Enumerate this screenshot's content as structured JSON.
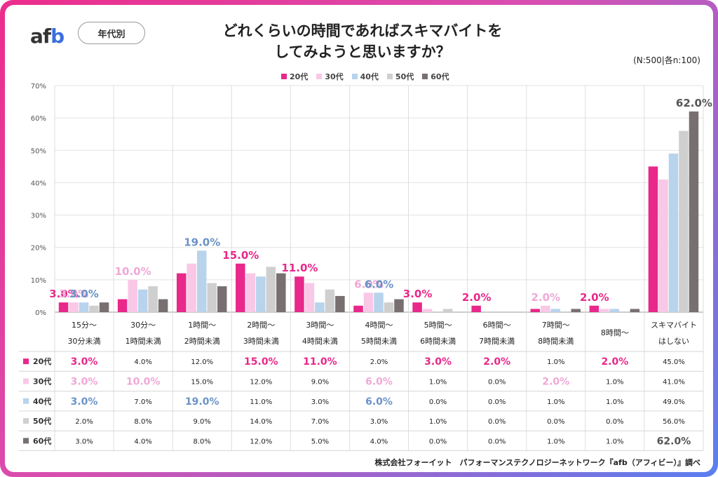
{
  "brand": {
    "logo_a": "af",
    "logo_b": "b"
  },
  "segment_label": "年代別",
  "sample_note": "(N:500|各n:100)",
  "source_note": "株式会社フォーイット　パフォーマンステクノロジーネットワーク『afb（アフィビー）』調べ",
  "chart_data": {
    "type": "bar",
    "title_lines": [
      "どれくらいの時間であればスキマバイトを",
      "してみようと思いますか？"
    ],
    "categories": [
      [
        "15分〜",
        "30分未満"
      ],
      [
        "30分〜",
        "1時間未満"
      ],
      [
        "1時間〜",
        "2時間未満"
      ],
      [
        "2時間〜",
        "3時間未満"
      ],
      [
        "3時間〜",
        "4時間未満"
      ],
      [
        "4時間〜",
        "5時間未満"
      ],
      [
        "5時間〜",
        "6時間未満"
      ],
      [
        "6時間〜",
        "7時間未満"
      ],
      [
        "7時間〜",
        "8時間未満"
      ],
      [
        "8時間〜"
      ],
      [
        "スキマバイト",
        "はしない"
      ]
    ],
    "series": [
      {
        "name": "20代",
        "color": "#e8288a",
        "values": [
          3,
          4,
          12,
          15,
          11,
          2,
          3,
          2,
          1,
          2,
          45
        ]
      },
      {
        "name": "30代",
        "color": "#f9c8e6",
        "values": [
          3,
          10,
          15,
          12,
          9,
          6,
          1,
          0,
          2,
          1,
          41
        ]
      },
      {
        "name": "40代",
        "color": "#b8d3ec",
        "values": [
          3,
          7,
          19,
          11,
          3,
          6,
          0,
          0,
          1,
          1,
          49
        ]
      },
      {
        "name": "50代",
        "color": "#cfcfcf",
        "values": [
          2,
          8,
          9,
          14,
          7,
          3,
          1,
          0,
          0,
          0,
          56
        ]
      },
      {
        "name": "60代",
        "color": "#787070",
        "values": [
          3,
          4,
          8,
          12,
          5,
          4,
          0,
          0,
          1,
          1,
          62
        ]
      }
    ],
    "yticks": [
      "0%",
      "10%",
      "20%",
      "30%",
      "40%",
      "50%",
      "60%",
      "70%"
    ],
    "ylim": [
      0,
      70
    ],
    "highlights": [
      {
        "cat": 0,
        "series": 0,
        "text": "3.0%",
        "color": "#e8288a"
      },
      {
        "cat": 0,
        "series": 1,
        "text": "3.0%",
        "color": "#f0a8d6"
      },
      {
        "cat": 0,
        "series": 2,
        "text": "3.0%",
        "color": "#6a93c7"
      },
      {
        "cat": 1,
        "series": 1,
        "text": "10.0%",
        "color": "#f0a8d6"
      },
      {
        "cat": 2,
        "series": 2,
        "text": "19.0%",
        "color": "#6a93c7"
      },
      {
        "cat": 3,
        "series": 0,
        "text": "15.0%",
        "color": "#e8288a"
      },
      {
        "cat": 4,
        "series": 0,
        "text": "11.0%",
        "color": "#e8288a"
      },
      {
        "cat": 5,
        "series": 1,
        "text": "6.0%",
        "color": "#f0a8d6"
      },
      {
        "cat": 5,
        "series": 2,
        "text": "6.0%",
        "color": "#6a93c7"
      },
      {
        "cat": 6,
        "series": 0,
        "text": "3.0%",
        "color": "#e8288a"
      },
      {
        "cat": 7,
        "series": 0,
        "text": "2.0%",
        "color": "#e8288a"
      },
      {
        "cat": 8,
        "series": 1,
        "text": "2.0%",
        "color": "#f0a8d6"
      },
      {
        "cat": 9,
        "series": 0,
        "text": "2.0%",
        "color": "#e8288a"
      },
      {
        "cat": 10,
        "series": 4,
        "text": "62.0%",
        "color": "#555555"
      }
    ],
    "table_values": [
      [
        "3.0%",
        "4.0%",
        "12.0%",
        "15.0%",
        "11.0%",
        "2.0%",
        "3.0%",
        "2.0%",
        "1.0%",
        "2.0%",
        "45.0%"
      ],
      [
        "3.0%",
        "10.0%",
        "15.0%",
        "12.0%",
        "9.0%",
        "6.0%",
        "1.0%",
        "0.0%",
        "2.0%",
        "1.0%",
        "41.0%"
      ],
      [
        "3.0%",
        "7.0%",
        "19.0%",
        "11.0%",
        "3.0%",
        "6.0%",
        "0.0%",
        "0.0%",
        "1.0%",
        "1.0%",
        "49.0%"
      ],
      [
        "2.0%",
        "8.0%",
        "9.0%",
        "14.0%",
        "7.0%",
        "3.0%",
        "1.0%",
        "0.0%",
        "0.0%",
        "0.0%",
        "56.0%"
      ],
      [
        "3.0%",
        "4.0%",
        "8.0%",
        "12.0%",
        "5.0%",
        "4.0%",
        "0.0%",
        "0.0%",
        "1.0%",
        "1.0%",
        "62.0%"
      ]
    ],
    "grid": true,
    "legend_position": "top"
  }
}
